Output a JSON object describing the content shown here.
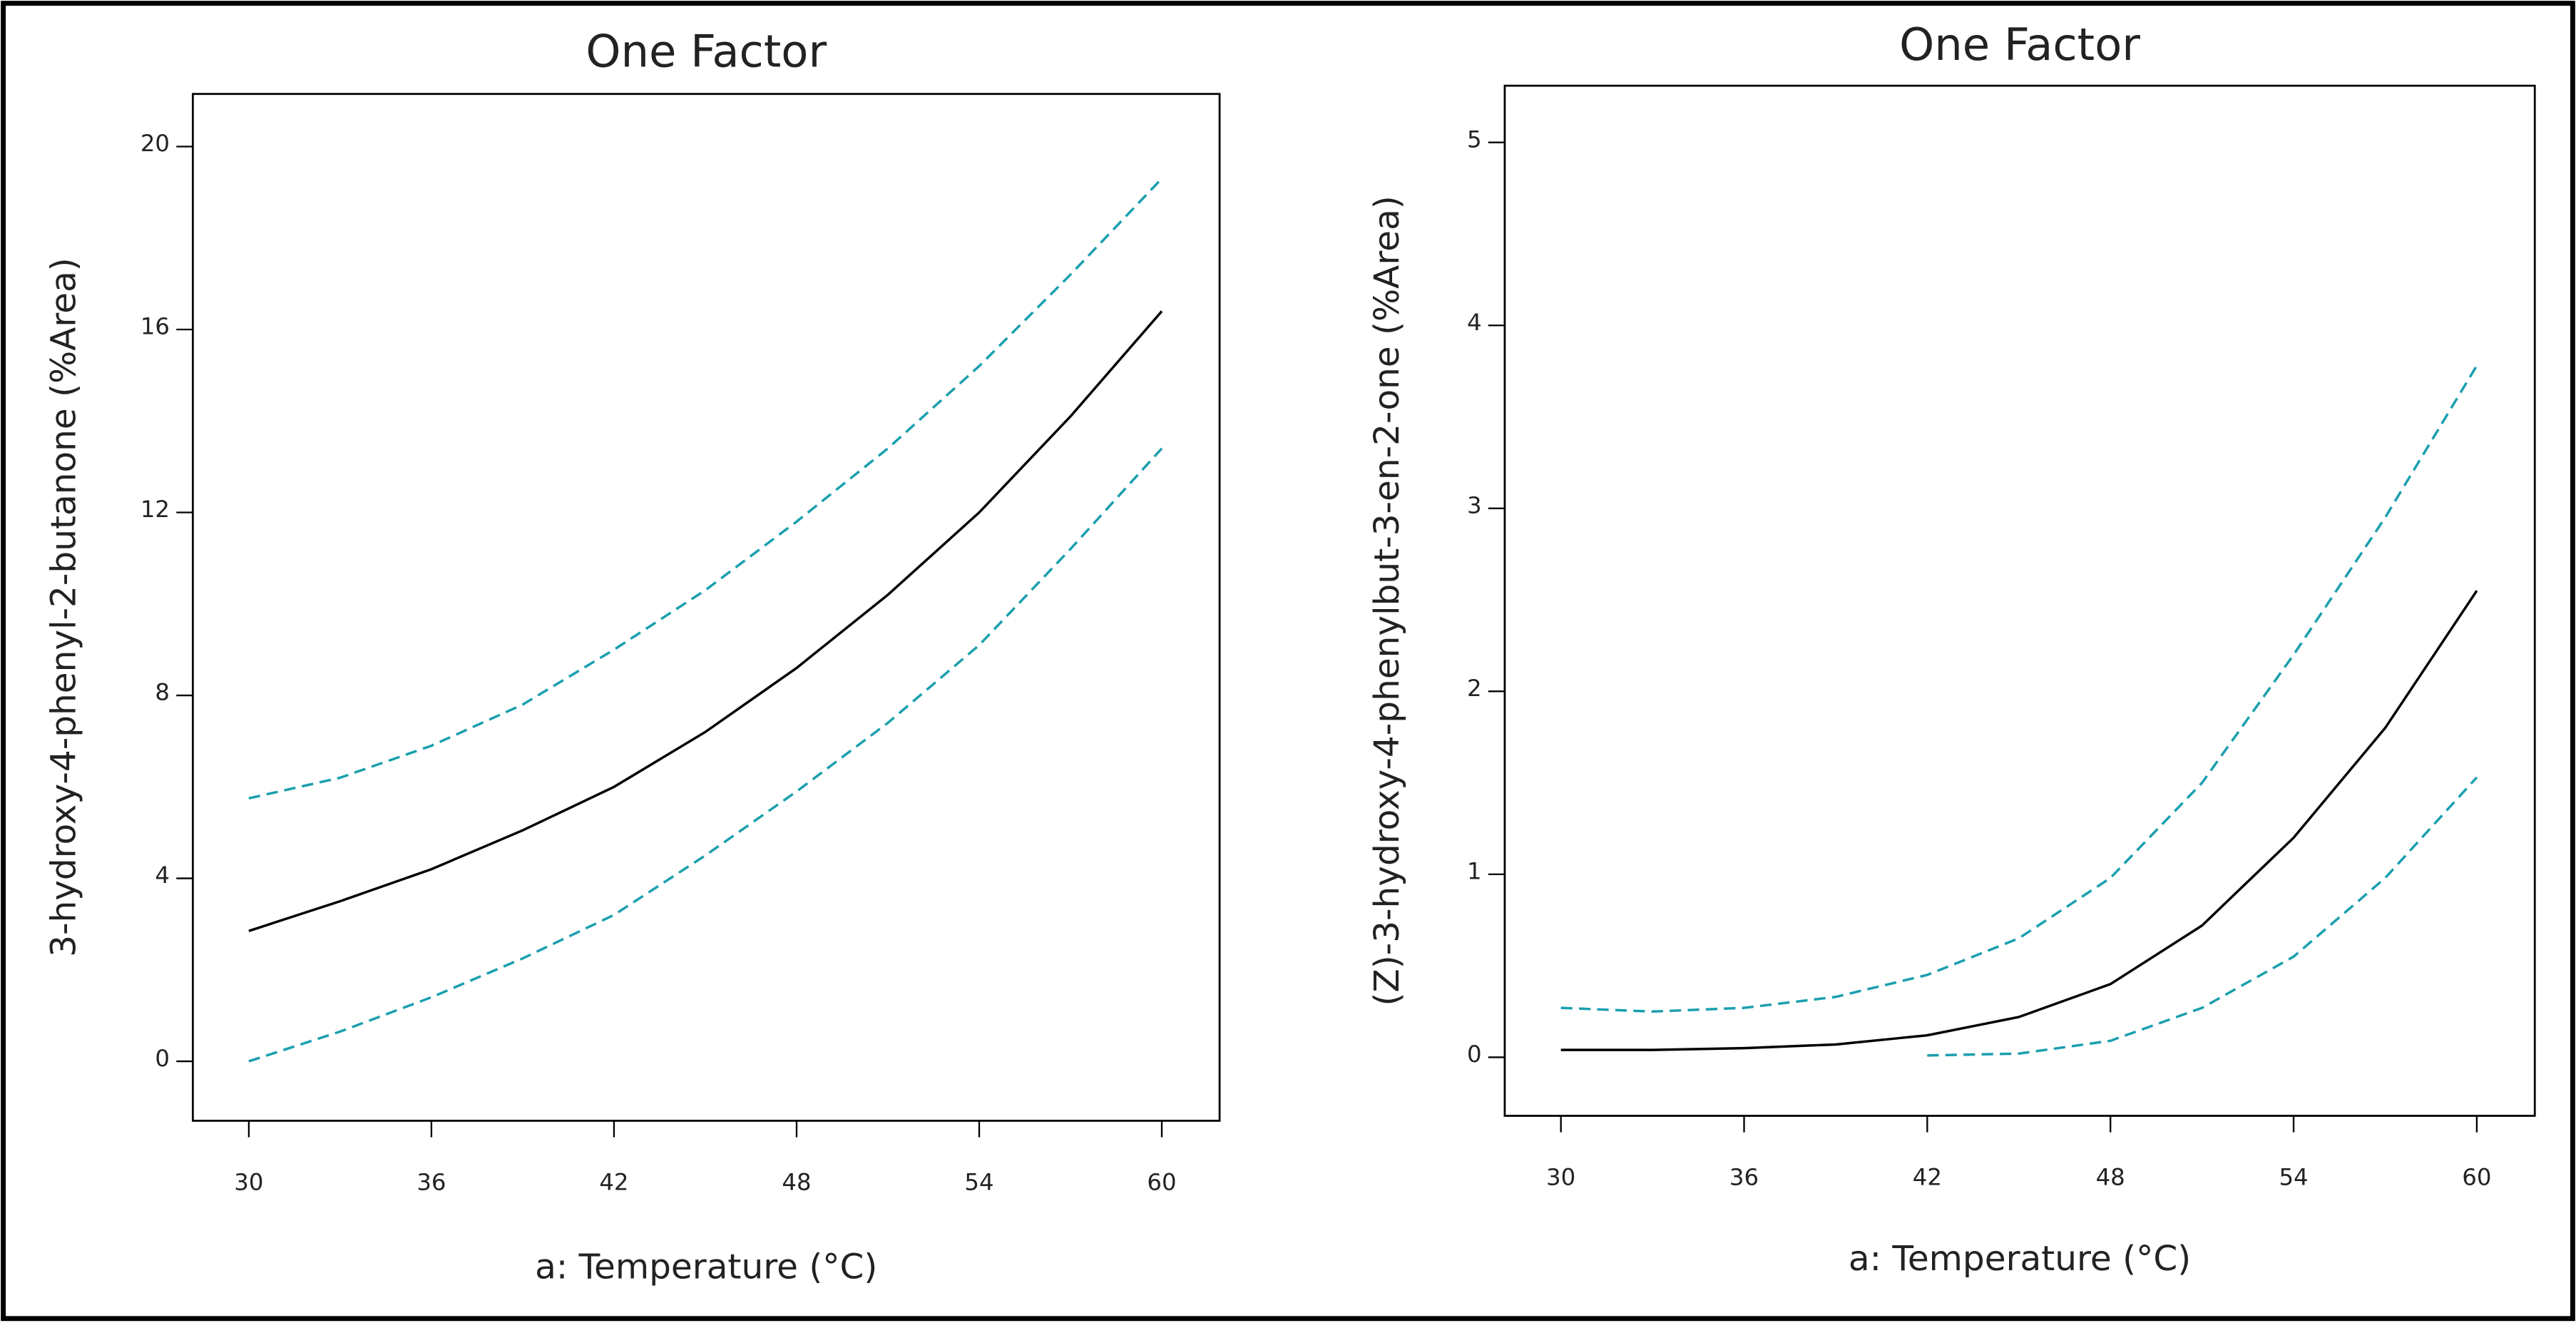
{
  "chart_data": [
    {
      "type": "line",
      "title": "One Factor",
      "x_label": "a: Temperature (°C)",
      "y_label": "3-hydroxy-4-phenyl-2-butanone (%Area)",
      "x": [
        30,
        33,
        36,
        39,
        42,
        45,
        48,
        51,
        54,
        57,
        60
      ],
      "series": [
        {
          "color": "#000000",
          "style": "solid",
          "values": [
            2.85,
            3.5,
            4.2,
            5.05,
            6.0,
            7.2,
            8.6,
            10.2,
            12.0,
            14.1,
            16.4
          ]
        },
        {
          "color": "#1a9fae",
          "style": "dashed",
          "values": [
            5.75,
            6.2,
            6.9,
            7.8,
            9.0,
            10.3,
            11.8,
            13.4,
            15.2,
            17.2,
            19.3
          ]
        },
        {
          "color": "#1a9fae",
          "style": "dashed",
          "values": [
            0,
            0.65,
            1.4,
            2.25,
            3.2,
            4.5,
            5.9,
            7.4,
            9.1,
            11.2,
            13.4
          ]
        }
      ],
      "xlim": [
        28.16,
        61.9
      ],
      "xticks": [
        30,
        36,
        42,
        48,
        54,
        60
      ],
      "ylim": [
        -1.3,
        21.15
      ],
      "yticks": [
        0,
        4,
        8,
        12,
        16,
        20
      ]
    },
    {
      "type": "line",
      "title": "One Factor",
      "x_label": "a: Temperature (°C)",
      "y_label": "(Z)-3-hydroxy-4-phenylbut-3-en-2-one (%Area)",
      "x": [
        30,
        33,
        36,
        39,
        42,
        45,
        48,
        51,
        54,
        57,
        60
      ],
      "series": [
        {
          "color": "#000000",
          "style": "solid",
          "values": [
            0.04,
            0.04,
            0.05,
            0.07,
            0.12,
            0.22,
            0.4,
            0.72,
            1.2,
            1.8,
            2.55
          ]
        },
        {
          "color": "#1a9fae",
          "style": "dashed",
          "values": [
            0.27,
            0.25,
            0.27,
            0.33,
            0.45,
            0.65,
            0.98,
            1.5,
            2.2,
            2.95,
            3.78
          ]
        },
        {
          "color": "#1a9fae",
          "style": "dashed",
          "values": [
            null,
            null,
            null,
            null,
            0.01,
            0.02,
            0.09,
            0.27,
            0.55,
            0.98,
            1.53
          ]
        }
      ],
      "xlim": [
        28.16,
        61.9
      ],
      "xticks": [
        30,
        36,
        42,
        48,
        54,
        60
      ],
      "ylim": [
        -0.32,
        5.31
      ],
      "yticks": [
        0,
        1,
        2,
        3,
        4,
        5
      ]
    }
  ]
}
